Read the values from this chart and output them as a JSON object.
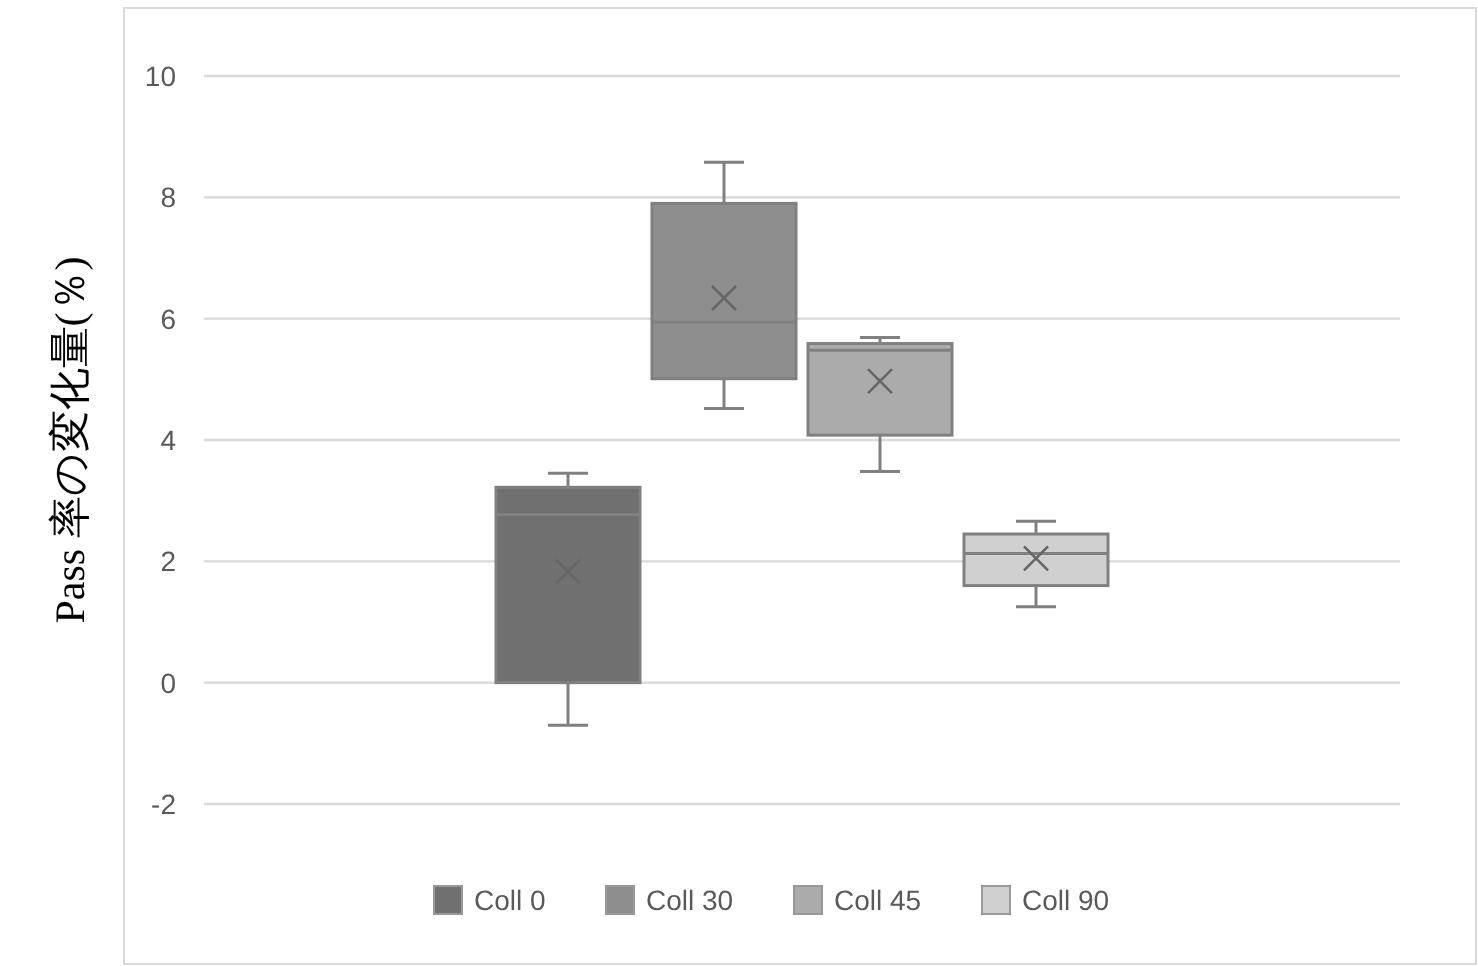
{
  "chart_data": {
    "type": "box",
    "ylabel": "Pass 率の変化量(％)",
    "categories": [
      null
    ],
    "series": [
      {
        "name": "Coll 0",
        "color": "#707070",
        "boxes": [
          {
            "low": -0.7,
            "q1": 0.0,
            "median": 2.77,
            "q3": 3.22,
            "high": 3.45,
            "mean": 1.83
          }
        ]
      },
      {
        "name": "Coll 30",
        "color": "#8e8e8e",
        "boxes": [
          {
            "low": 4.52,
            "q1": 5.01,
            "median": 5.94,
            "q3": 7.9,
            "high": 8.58,
            "mean": 6.34
          }
        ]
      },
      {
        "name": "Coll 45",
        "color": "#ababab",
        "boxes": [
          {
            "low": 3.48,
            "q1": 4.08,
            "median": 5.48,
            "q3": 5.59,
            "high": 5.69,
            "mean": 4.97
          }
        ]
      },
      {
        "name": "Coll 90",
        "color": "#d0d0d0",
        "boxes": [
          {
            "low": 1.25,
            "q1": 1.6,
            "median": 2.13,
            "q3": 2.45,
            "high": 2.66,
            "mean": 2.05
          }
        ]
      }
    ],
    "ylim": [
      -2,
      10
    ],
    "yticks": [
      -2,
      0,
      2,
      4,
      6,
      8,
      10
    ],
    "grid": "y",
    "legend": "bottom"
  }
}
